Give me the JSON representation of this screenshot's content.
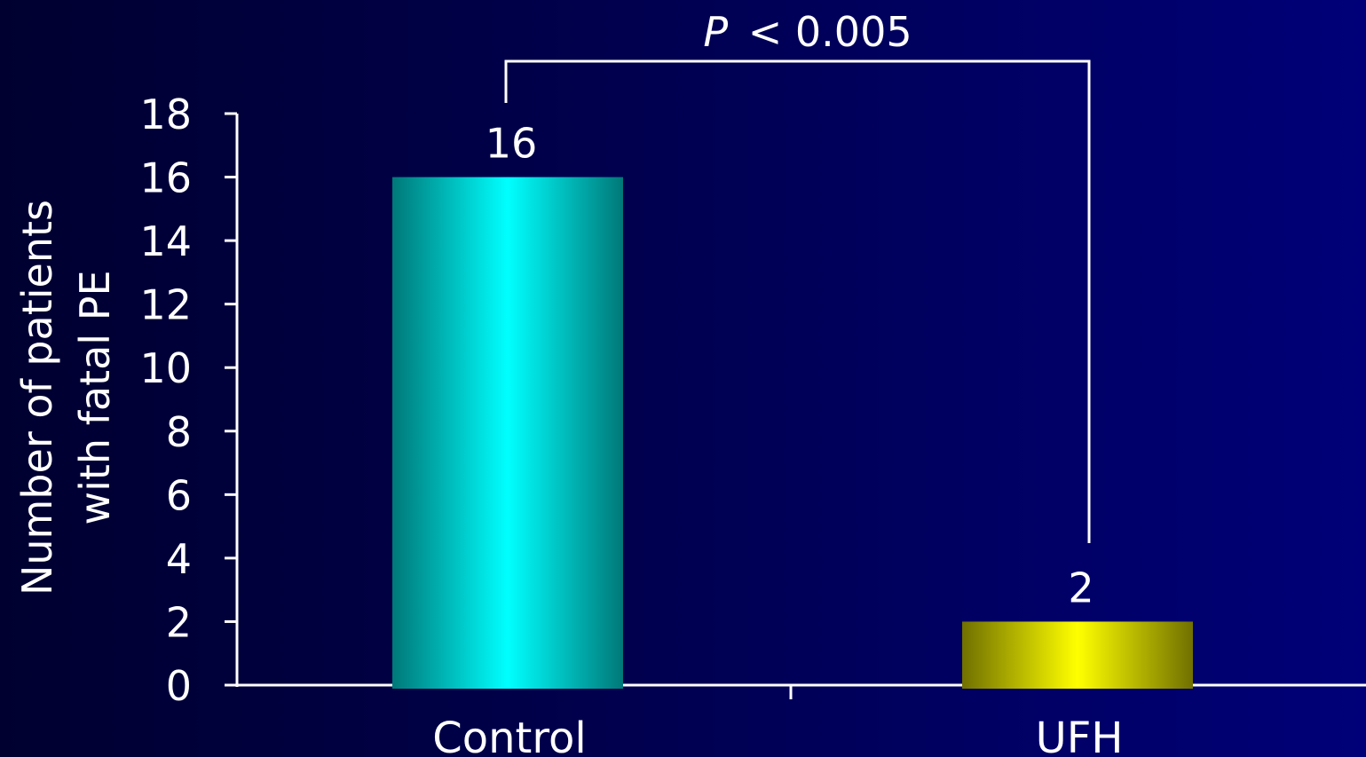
{
  "chart_data": {
    "type": "bar",
    "categories": [
      "Control",
      "UFH"
    ],
    "values": [
      16,
      2
    ],
    "data_labels": [
      "16",
      "2"
    ],
    "title": "",
    "xlabel": "",
    "ylabel_lines": [
      "Number of patients",
      "with fatal PE"
    ],
    "ylim": [
      0,
      18
    ],
    "yticks": [
      0,
      2,
      4,
      6,
      8,
      10,
      12,
      14,
      16,
      18
    ],
    "grid": false,
    "legend": "none",
    "bar_colors": [
      {
        "edge": "#007878",
        "center": "#00ffff"
      },
      {
        "edge": "#707000",
        "center": "#ffff00"
      }
    ],
    "annotation": {
      "p_symbol": "P",
      "p_rest": "< 0.005",
      "between": [
        "Control",
        "UFH"
      ]
    }
  },
  "colors": {
    "background_left": "#000030",
    "background_right": "#000078",
    "axis": "#ffffff",
    "text": "#ffffff"
  }
}
